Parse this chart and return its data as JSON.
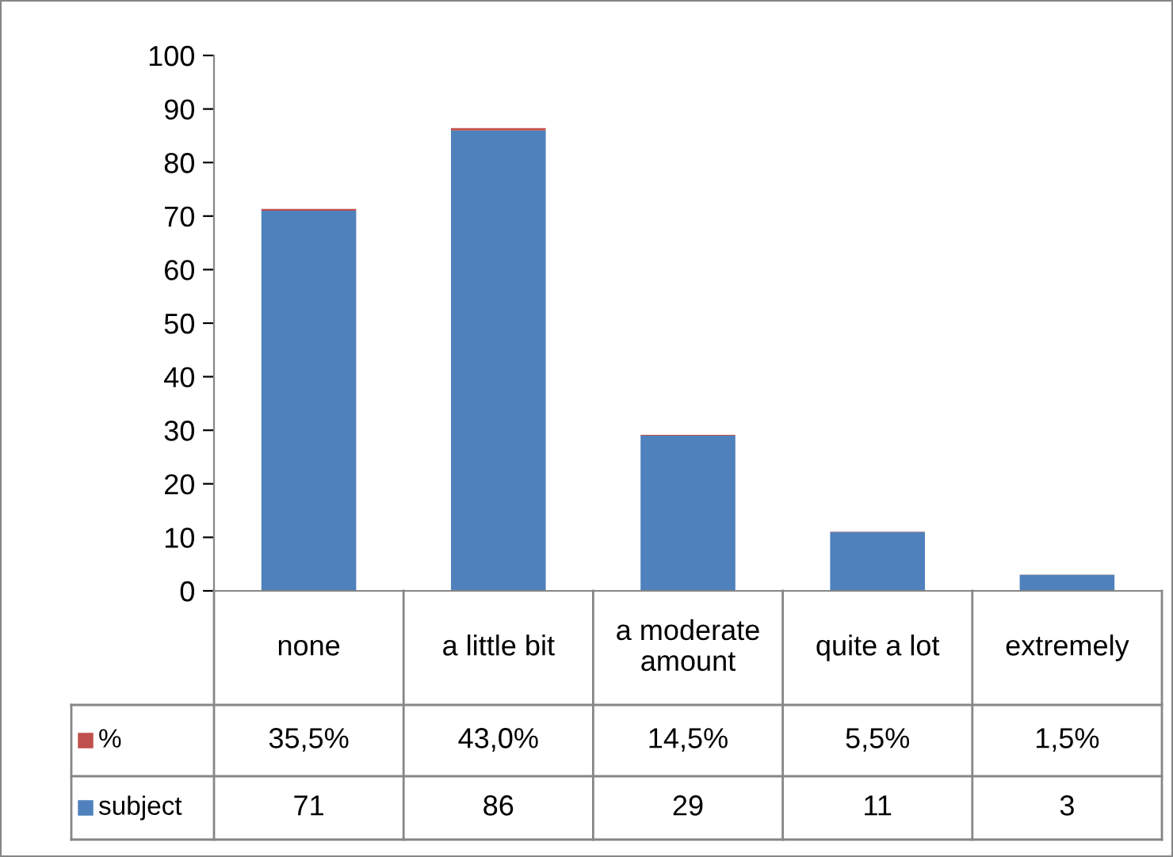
{
  "chart_data": {
    "type": "bar",
    "stacked": true,
    "categories": [
      "none",
      "a little bit",
      "a moderate\namount",
      "quite a lot",
      "extremely"
    ],
    "series": [
      {
        "name": "subject",
        "color": "#4f81bd",
        "values": [
          71,
          86,
          29,
          11,
          3
        ],
        "value_labels": [
          "71",
          "86",
          "29",
          "11",
          "3"
        ]
      },
      {
        "name": "%",
        "color": "#c0504d",
        "values": [
          0.355,
          0.43,
          0.145,
          0.055,
          0.015
        ],
        "value_labels": [
          "35,5%",
          "43,0%",
          "14,5%",
          "5,5%",
          "1,5%"
        ]
      }
    ],
    "legend": "bottom",
    "ylim": [
      0,
      100
    ],
    "yticks": [
      0,
      10,
      20,
      30,
      40,
      50,
      60,
      70,
      80,
      90,
      100
    ]
  }
}
